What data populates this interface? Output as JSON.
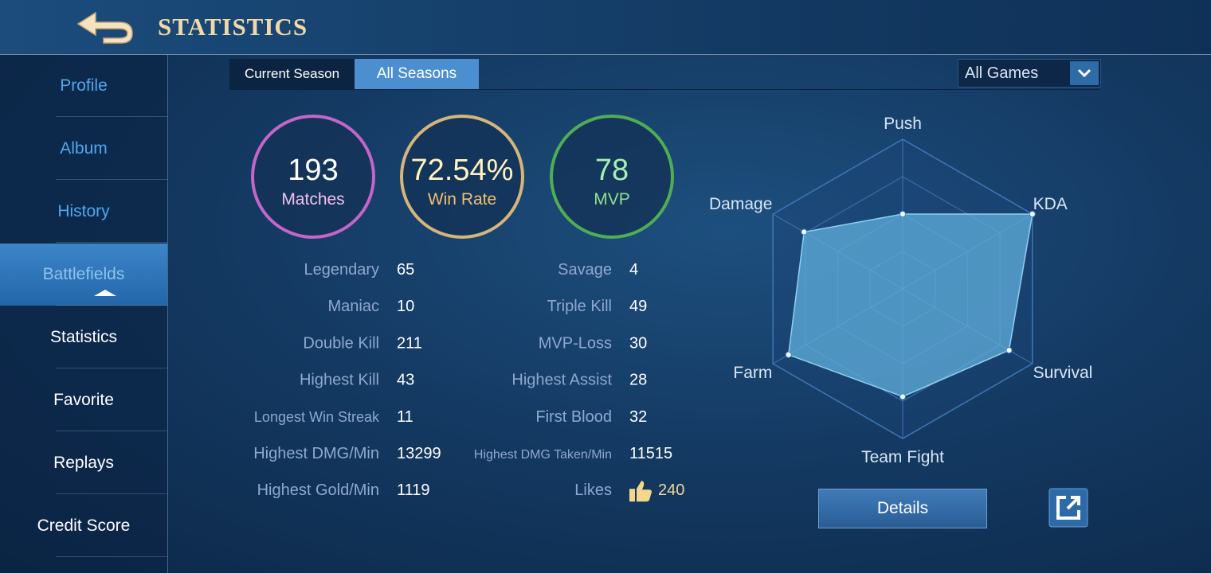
{
  "header": {
    "title": "STATISTICS"
  },
  "sidebar": {
    "items": [
      "Profile",
      "Album",
      "History",
      "Battlefields",
      "Statistics",
      "Favorite",
      "Replays",
      "Credit Score"
    ]
  },
  "tabs": [
    "Current Season",
    "All Seasons"
  ],
  "filter": "All Games",
  "summary": [
    {
      "value": "193",
      "label": "Matches"
    },
    {
      "value": "72.54%",
      "label": "Win Rate"
    },
    {
      "value": "78",
      "label": "MVP"
    }
  ],
  "stats": {
    "left": [
      [
        "Legendary",
        "65"
      ],
      [
        "Maniac",
        "10"
      ],
      [
        "Double Kill",
        "211"
      ],
      [
        "Highest Kill",
        "43"
      ],
      [
        "Longest Win Streak",
        "11"
      ],
      [
        "Highest DMG/Min",
        "13299"
      ],
      [
        "Highest Gold/Min",
        "1119"
      ]
    ],
    "right": [
      [
        "Savage",
        "4"
      ],
      [
        "Triple Kill",
        "49"
      ],
      [
        "MVP-Loss",
        "30"
      ],
      [
        "Highest Assist",
        "28"
      ],
      [
        "First Blood",
        "32"
      ],
      [
        "Highest DMG Taken/Min",
        "11515"
      ],
      [
        "Likes",
        "240"
      ]
    ]
  },
  "radar": {
    "axes": [
      "Push",
      "KDA",
      "Survival",
      "Team Fight",
      "Farm",
      "Damage"
    ],
    "values": [
      0.5,
      1.0,
      0.82,
      0.72,
      0.88,
      0.76
    ],
    "rlim": [
      0,
      1
    ],
    "rticks": [
      0.25,
      0.5,
      0.75,
      1
    ]
  },
  "details_button": "Details"
}
